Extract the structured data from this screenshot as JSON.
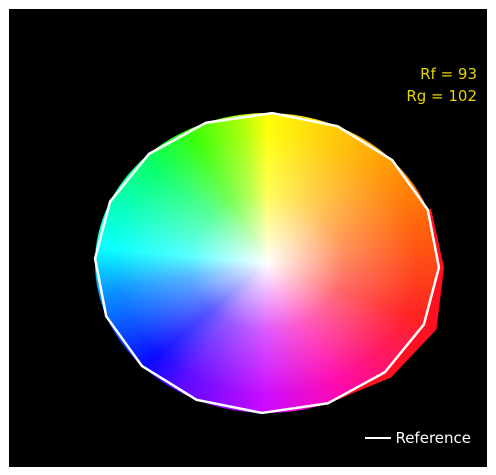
{
  "chart_data": {
    "type": "color-vector-graphic",
    "metrics": [
      {
        "label": "Rf",
        "value": 93
      },
      {
        "label": "Rg",
        "value": 102
      }
    ],
    "legend": {
      "entries": [
        {
          "name": "Reference",
          "color": "#ffffff"
        }
      ],
      "placement": "bottom-right"
    },
    "hue_bins": 16,
    "reference_radius": 1.0,
    "test_radius_relative": [
      1.0,
      1.0,
      1.0,
      1.02,
      1.03,
      1.08,
      1.05,
      1.0,
      1.0,
      1.0,
      1.0,
      1.01,
      1.0,
      1.0,
      1.0,
      1.0
    ],
    "colors": {
      "background": "#000000",
      "metric_text": "#e6d400",
      "reference_line": "#ffffff"
    }
  },
  "texts": {
    "rf": "Rf = 93",
    "rg": "Rg = 102",
    "legend": "Reference"
  }
}
